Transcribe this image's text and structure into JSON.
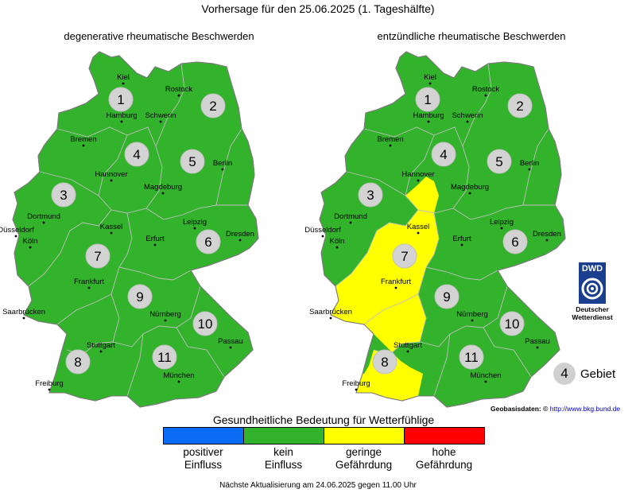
{
  "header": {
    "title": "Vorhersage für den 25.06.2025 (1. Tageshälfte)"
  },
  "maps": [
    {
      "title": "degenerative rheumatische Beschwerden",
      "regions": [
        {
          "id": "1",
          "level": "kein Einfluss"
        },
        {
          "id": "2",
          "level": "kein Einfluss"
        },
        {
          "id": "3",
          "level": "kein Einfluss"
        },
        {
          "id": "4",
          "level": "kein Einfluss"
        },
        {
          "id": "5",
          "level": "kein Einfluss"
        },
        {
          "id": "6",
          "level": "kein Einfluss"
        },
        {
          "id": "7",
          "level": "kein Einfluss"
        },
        {
          "id": "8",
          "level": "kein Einfluss"
        },
        {
          "id": "9",
          "level": "kein Einfluss"
        },
        {
          "id": "10",
          "level": "kein Einfluss"
        },
        {
          "id": "11",
          "level": "kein Einfluss"
        }
      ]
    },
    {
      "title": "entzündliche rheumatische Beschwerden",
      "regions": [
        {
          "id": "1",
          "level": "kein Einfluss"
        },
        {
          "id": "2",
          "level": "kein Einfluss"
        },
        {
          "id": "3",
          "level": "kein Einfluss"
        },
        {
          "id": "4",
          "level": "kein Einfluss"
        },
        {
          "id": "5",
          "level": "kein Einfluss"
        },
        {
          "id": "6",
          "level": "kein Einfluss"
        },
        {
          "id": "7",
          "level": "geringe Gefährdung"
        },
        {
          "id": "8",
          "level": "geringe Gefährdung"
        },
        {
          "id": "9",
          "level": "kein Einfluss"
        },
        {
          "id": "10",
          "level": "kein Einfluss"
        },
        {
          "id": "11",
          "level": "kein Einfluss"
        }
      ]
    }
  ],
  "cities": [
    "Kiel",
    "Rostock",
    "Hamburg",
    "Schwerin",
    "Bremen",
    "Hannover",
    "Berlin",
    "Magdeburg",
    "Dortmund",
    "Düsseldorf",
    "Köln",
    "Kassel",
    "Leipzig",
    "Dresden",
    "Erfurt",
    "Frankfurt",
    "Saarbrücken",
    "Nürnberg",
    "Passau",
    "Stuttgart",
    "München",
    "Freiburg"
  ],
  "legend": {
    "title": "Gesundheitliche Bedeutung für Wetterfühlige",
    "items": [
      {
        "label1": "positiver",
        "label2": "Einfluss",
        "color": "#0a6cf5"
      },
      {
        "label1": "kein",
        "label2": "Einfluss",
        "color": "#33b22b"
      },
      {
        "label1": "geringe",
        "label2": "Gefährdung",
        "color": "#ffff00"
      },
      {
        "label1": "hohe",
        "label2": "Gefährdung",
        "color": "#ff0000"
      }
    ]
  },
  "key": {
    "number": "4",
    "label": "Gebiet"
  },
  "logo": {
    "abbr": "DWD",
    "line1": "Deutscher",
    "line2": "Wetterdienst"
  },
  "source": {
    "label": "Geobasisdaten: ©",
    "link": "http://www.bkg.bund.de"
  },
  "footer": "Nächste Aktualisierung am 24.06.2025 gegen 11.00 Uhr"
}
